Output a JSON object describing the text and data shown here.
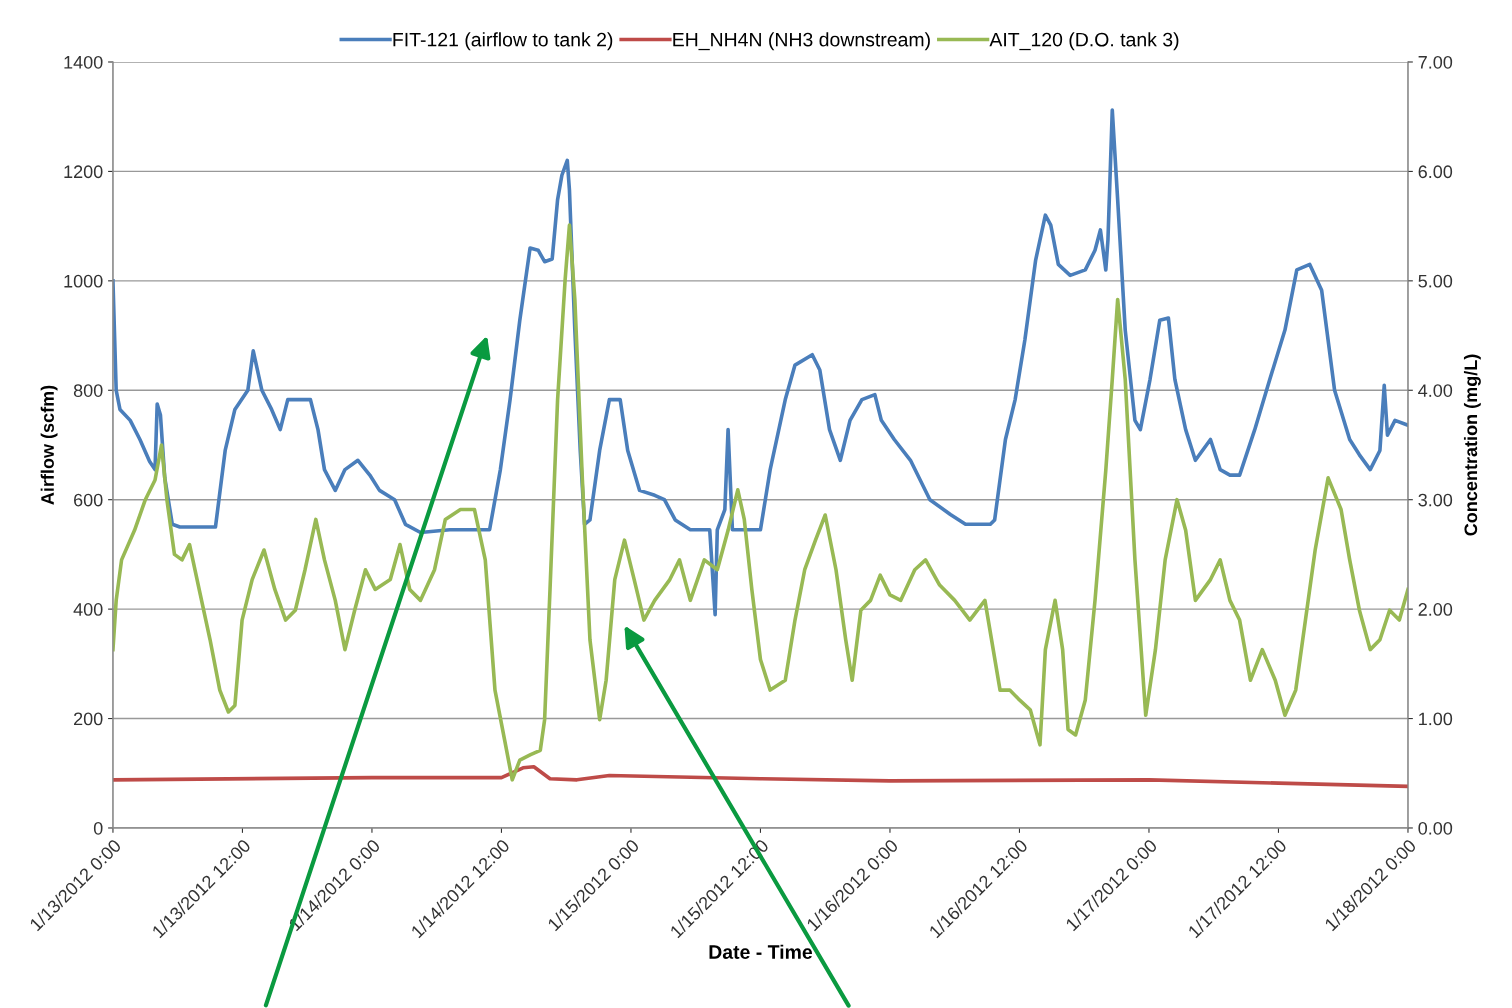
{
  "chart_data": {
    "type": "line",
    "xlabel": "Date - Time",
    "ylabel": "Airflow (scfm)",
    "y2label": "Concentration (mg/L)",
    "xlim": [
      "2012-01-13T00:00",
      "2012-01-18T00:00"
    ],
    "xticks": [
      {
        "value": "2012-01-13T00:00",
        "label": "1/13/2012 0:00"
      },
      {
        "value": "2012-01-13T12:00",
        "label": "1/13/2012 12:00"
      },
      {
        "value": "2012-01-14T00:00",
        "label": "1/14/2012 0:00"
      },
      {
        "value": "2012-01-14T12:00",
        "label": "1/14/2012 12:00"
      },
      {
        "value": "2012-01-15T00:00",
        "label": "1/15/2012 0:00"
      },
      {
        "value": "2012-01-15T12:00",
        "label": "1/15/2012 12:00"
      },
      {
        "value": "2012-01-16T00:00",
        "label": "1/16/2012 0:00"
      },
      {
        "value": "2012-01-16T12:00",
        "label": "1/16/2012 12:00"
      },
      {
        "value": "2012-01-17T00:00",
        "label": "1/17/2012 0:00"
      },
      {
        "value": "2012-01-17T12:00",
        "label": "1/17/2012 12:00"
      },
      {
        "value": "2012-01-18T00:00",
        "label": "1/18/2012 0:00"
      }
    ],
    "ylim": [
      0,
      1400
    ],
    "yticks": [
      0,
      200,
      400,
      600,
      800,
      1000,
      1200,
      1400
    ],
    "y2lim": [
      0,
      7
    ],
    "y2ticks": [
      {
        "value": 0,
        "label": "0.00"
      },
      {
        "value": 1,
        "label": "1.00"
      },
      {
        "value": 2,
        "label": "2.00"
      },
      {
        "value": 3,
        "label": "3.00"
      },
      {
        "value": 4,
        "label": "4.00"
      },
      {
        "value": 5,
        "label": "5.00"
      },
      {
        "value": 6,
        "label": "6.00"
      },
      {
        "value": 7,
        "label": "7.00"
      }
    ],
    "grid": "y",
    "legend": "top",
    "marker": "none",
    "line_style": "solid",
    "series": [
      {
        "name": "FIT-121 (airflow to tank 2)",
        "color": "#4a7ebb",
        "x": [
          "2012-01-13T00:00",
          "2012-01-13T00:18",
          "2012-01-13T00:39",
          "2012-01-13T01:36",
          "2012-01-13T02:30",
          "2012-01-13T03:24",
          "2012-01-13T03:54",
          "2012-01-13T04:06",
          "2012-01-13T04:24",
          "2012-01-13T04:48",
          "2012-01-13T05:30",
          "2012-01-13T06:12",
          "2012-01-13T09:30",
          "2012-01-13T10:24",
          "2012-01-13T11:18",
          "2012-01-13T12:30",
          "2012-01-13T13:00",
          "2012-01-13T13:48",
          "2012-01-13T14:42",
          "2012-01-13T15:30",
          "2012-01-13T16:12",
          "2012-01-13T18:18",
          "2012-01-13T19:00",
          "2012-01-13T19:36",
          "2012-01-13T20:36",
          "2012-01-13T21:30",
          "2012-01-13T22:42",
          "2012-01-13T23:48",
          "2012-01-14T00:42",
          "2012-01-14T02:06",
          "2012-01-14T03:06",
          "2012-01-14T04:30",
          "2012-01-14T07:12",
          "2012-01-14T09:30",
          "2012-01-14T10:54",
          "2012-01-14T11:54",
          "2012-01-14T12:48",
          "2012-01-14T13:42",
          "2012-01-14T14:39",
          "2012-01-14T15:24",
          "2012-01-14T16:00",
          "2012-01-14T16:42",
          "2012-01-14T17:12",
          "2012-01-14T17:36",
          "2012-01-14T18:06",
          "2012-01-14T18:18",
          "2012-01-14T18:48",
          "2012-01-14T19:18",
          "2012-01-14T19:42",
          "2012-01-14T20:12",
          "2012-01-14T21:06",
          "2012-01-14T22:00",
          "2012-01-14T23:00",
          "2012-01-14T23:42",
          "2012-01-15T00:48",
          "2012-01-15T02:12",
          "2012-01-15T03:06",
          "2012-01-15T04:06",
          "2012-01-15T05:30",
          "2012-01-15T07:18",
          "2012-01-15T07:48",
          "2012-01-15T08:00",
          "2012-01-15T08:42",
          "2012-01-15T09:00",
          "2012-01-15T09:24",
          "2012-01-15T12:00",
          "2012-01-15T12:54",
          "2012-01-15T14:18",
          "2012-01-15T15:12",
          "2012-01-15T16:48",
          "2012-01-15T17:30",
          "2012-01-15T18:24",
          "2012-01-15T19:24",
          "2012-01-15T20:18",
          "2012-01-15T21:24",
          "2012-01-15T22:36",
          "2012-01-15T23:12",
          "2012-01-16T00:24",
          "2012-01-16T01:54",
          "2012-01-16T03:42",
          "2012-01-16T05:36",
          "2012-01-16T07:00",
          "2012-01-16T09:18",
          "2012-01-16T09:42",
          "2012-01-16T10:42",
          "2012-01-16T11:36",
          "2012-01-16T12:30",
          "2012-01-16T13:30",
          "2012-01-16T14:24",
          "2012-01-16T14:54",
          "2012-01-16T15:36",
          "2012-01-16T16:42",
          "2012-01-16T18:06",
          "2012-01-16T19:00",
          "2012-01-16T19:30",
          "2012-01-16T20:00",
          "2012-01-16T20:12",
          "2012-01-16T20:36",
          "2012-01-16T21:06",
          "2012-01-16T21:48",
          "2012-01-16T22:42",
          "2012-01-16T23:12",
          "2012-01-17T00:06",
          "2012-01-17T01:00",
          "2012-01-17T01:48",
          "2012-01-17T02:24",
          "2012-01-17T03:24",
          "2012-01-17T04:18",
          "2012-01-17T05:42",
          "2012-01-17T06:36",
          "2012-01-17T07:30",
          "2012-01-17T08:24",
          "2012-01-17T09:48",
          "2012-01-17T11:12",
          "2012-01-17T12:36",
          "2012-01-17T13:42",
          "2012-01-17T14:54",
          "2012-01-17T16:00",
          "2012-01-17T17:12",
          "2012-01-17T18:36",
          "2012-01-17T19:30",
          "2012-01-17T20:30",
          "2012-01-17T21:24",
          "2012-01-17T21:48",
          "2012-01-17T22:06",
          "2012-01-17T22:48",
          "2012-01-18T00:00"
        ],
        "values": [
          1000,
          800,
          765,
          745,
          710,
          670,
          655,
          775,
          755,
          640,
          555,
          550,
          550,
          690,
          765,
          800,
          872,
          800,
          765,
          728,
          783,
          783,
          728,
          655,
          617,
          655,
          672,
          645,
          617,
          600,
          555,
          540,
          545,
          545,
          545,
          655,
          783,
          928,
          1060,
          1056,
          1035,
          1040,
          1148,
          1193,
          1220,
          1166,
          910,
          690,
          555,
          563,
          690,
          783,
          783,
          690,
          617,
          608,
          600,
          563,
          545,
          545,
          390,
          545,
          582,
          728,
          545,
          545,
          655,
          783,
          846,
          865,
          837,
          728,
          672,
          745,
          783,
          792,
          745,
          710,
          672,
          600,
          573,
          555,
          555,
          563,
          710,
          783,
          892,
          1038,
          1120,
          1102,
          1030,
          1010,
          1020,
          1056,
          1093,
          1020,
          1075,
          1312,
          1148,
          910,
          745,
          728,
          820,
          928,
          932,
          820,
          728,
          672,
          710,
          655,
          645,
          645,
          728,
          820,
          910,
          1020,
          1030,
          983,
          800,
          710,
          682,
          655,
          690,
          809,
          718,
          745,
          736
        ]
      },
      {
        "name": "EH_NH4N (NH3 downstream)",
        "color": "#be4b48",
        "axis": "y2",
        "x": [
          "2012-01-13T00:00",
          "2012-01-14T00:00",
          "2012-01-14T12:00",
          "2012-01-14T14:00",
          "2012-01-14T15:00",
          "2012-01-14T16:30",
          "2012-01-14T19:00",
          "2012-01-14T22:00",
          "2012-01-15T12:00",
          "2012-01-16T00:00",
          "2012-01-17T00:00",
          "2012-01-17T12:00",
          "2012-01-18T00:00"
        ],
        "values": [
          0.44,
          0.46,
          0.46,
          0.55,
          0.56,
          0.45,
          0.44,
          0.48,
          0.45,
          0.43,
          0.44,
          0.41,
          0.38
        ]
      },
      {
        "name": "AIT_120 (D.O. tank 3)",
        "color": "#98b954",
        "axis": "y2",
        "x": [
          "2012-01-13T00:00",
          "2012-01-13T00:18",
          "2012-01-13T00:48",
          "2012-01-13T02:00",
          "2012-01-13T03:00",
          "2012-01-13T03:54",
          "2012-01-13T04:30",
          "2012-01-13T05:00",
          "2012-01-13T05:42",
          "2012-01-13T06:24",
          "2012-01-13T07:06",
          "2012-01-13T08:06",
          "2012-01-13T09:00",
          "2012-01-13T09:54",
          "2012-01-13T10:42",
          "2012-01-13T11:18",
          "2012-01-13T11:58",
          "2012-01-13T12:54",
          "2012-01-13T14:00",
          "2012-01-13T15:00",
          "2012-01-13T16:00",
          "2012-01-13T16:54",
          "2012-01-13T17:48",
          "2012-01-13T18:48",
          "2012-01-13T19:36",
          "2012-01-13T20:36",
          "2012-01-13T21:30",
          "2012-01-13T22:24",
          "2012-01-13T23:24",
          "2012-01-14T00:18",
          "2012-01-14T01:42",
          "2012-01-14T02:36",
          "2012-01-14T03:30",
          "2012-01-14T04:30",
          "2012-01-14T05:48",
          "2012-01-14T06:48",
          "2012-01-14T08:12",
          "2012-01-14T09:30",
          "2012-01-14T10:30",
          "2012-01-14T11:24",
          "2012-01-14T12:18",
          "2012-01-14T13:00",
          "2012-01-14T13:42",
          "2012-01-14T14:42",
          "2012-01-14T15:36",
          "2012-01-14T16:00",
          "2012-01-14T16:30",
          "2012-01-14T17:12",
          "2012-01-14T17:54",
          "2012-01-14T18:18",
          "2012-01-14T18:48",
          "2012-01-14T19:30",
          "2012-01-14T20:12",
          "2012-01-14T21:06",
          "2012-01-14T21:42",
          "2012-01-14T22:30",
          "2012-01-14T23:24",
          "2012-01-15T00:18",
          "2012-01-15T01:12",
          "2012-01-15T02:12",
          "2012-01-15T03:36",
          "2012-01-15T04:30",
          "2012-01-15T05:30",
          "2012-01-15T06:48",
          "2012-01-15T08:00",
          "2012-01-15T09:00",
          "2012-01-15T09:54",
          "2012-01-15T10:30",
          "2012-01-15T11:12",
          "2012-01-15T12:00",
          "2012-01-15T12:54",
          "2012-01-15T14:18",
          "2012-01-15T15:12",
          "2012-01-15T16:06",
          "2012-01-15T17:06",
          "2012-01-15T18:00",
          "2012-01-15T19:00",
          "2012-01-15T19:54",
          "2012-01-15T20:30",
          "2012-01-15T21:18",
          "2012-01-15T22:12",
          "2012-01-15T23:06",
          "2012-01-16T00:00",
          "2012-01-16T01:00",
          "2012-01-16T02:18",
          "2012-01-16T03:18",
          "2012-01-16T04:36",
          "2012-01-16T06:00",
          "2012-01-16T07:24",
          "2012-01-16T08:48",
          "2012-01-16T10:12",
          "2012-01-16T11:06",
          "2012-01-16T12:00",
          "2012-01-16T13:00",
          "2012-01-16T13:54",
          "2012-01-16T14:24",
          "2012-01-16T15:18",
          "2012-01-16T16:00",
          "2012-01-16T16:30",
          "2012-01-16T17:12",
          "2012-01-16T18:06",
          "2012-01-16T19:00",
          "2012-01-16T20:00",
          "2012-01-16T20:36",
          "2012-01-16T21:06",
          "2012-01-16T21:48",
          "2012-01-16T22:42",
          "2012-01-16T23:42",
          "2012-01-17T00:36",
          "2012-01-17T01:30",
          "2012-01-17T02:36",
          "2012-01-17T03:24",
          "2012-01-17T04:18",
          "2012-01-17T05:42",
          "2012-01-17T06:36",
          "2012-01-17T07:30",
          "2012-01-17T08:24",
          "2012-01-17T09:24",
          "2012-01-17T10:30",
          "2012-01-17T11:42",
          "2012-01-17T12:36",
          "2012-01-17T13:36",
          "2012-01-17T14:30",
          "2012-01-17T15:24",
          "2012-01-17T16:36",
          "2012-01-17T17:48",
          "2012-01-17T18:36",
          "2012-01-17T19:30",
          "2012-01-17T20:30",
          "2012-01-17T21:24",
          "2012-01-17T22:18",
          "2012-01-17T23:12",
          "2012-01-18T00:00"
        ],
        "values": [
          1.63,
          2.08,
          2.45,
          2.72,
          3.0,
          3.18,
          3.5,
          3.0,
          2.5,
          2.45,
          2.59,
          2.13,
          1.72,
          1.26,
          1.06,
          1.12,
          1.9,
          2.27,
          2.54,
          2.18,
          1.9,
          1.99,
          2.36,
          2.82,
          2.45,
          2.08,
          1.63,
          1.99,
          2.36,
          2.18,
          2.27,
          2.59,
          2.18,
          2.08,
          2.36,
          2.82,
          2.91,
          2.91,
          2.45,
          1.26,
          0.8,
          0.44,
          0.62,
          0.67,
          0.71,
          0.99,
          2.18,
          3.91,
          5.01,
          5.51,
          4.83,
          3.18,
          1.72,
          0.99,
          1.35,
          2.27,
          2.63,
          2.27,
          1.9,
          2.08,
          2.27,
          2.45,
          2.08,
          2.45,
          2.36,
          2.72,
          3.09,
          2.82,
          2.18,
          1.54,
          1.26,
          1.35,
          1.9,
          2.36,
          2.63,
          2.86,
          2.36,
          1.72,
          1.35,
          1.99,
          2.08,
          2.31,
          2.13,
          2.08,
          2.36,
          2.45,
          2.22,
          2.08,
          1.9,
          2.08,
          1.26,
          1.26,
          1.17,
          1.08,
          0.76,
          1.63,
          2.08,
          1.63,
          0.9,
          0.85,
          1.17,
          2.08,
          3.27,
          4.1,
          4.83,
          4.1,
          2.45,
          1.03,
          1.63,
          2.45,
          3.0,
          2.72,
          2.08,
          2.27,
          2.45,
          2.08,
          1.9,
          1.35,
          1.63,
          1.35,
          1.03,
          1.26,
          1.9,
          2.54,
          3.2,
          2.91,
          2.45,
          1.99,
          1.63,
          1.72,
          1.99,
          1.9,
          2.18
        ]
      }
    ]
  }
}
